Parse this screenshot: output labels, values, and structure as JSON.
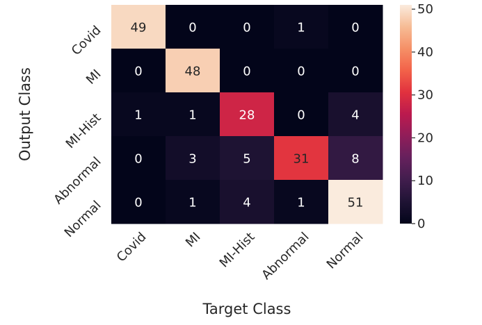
{
  "chart_data": {
    "type": "heatmap",
    "xlabel": "Target Class",
    "ylabel": "Output Class",
    "x_categories": [
      "Covid",
      "MI",
      "MI-Hist",
      "Abnormal",
      "Normal"
    ],
    "y_categories": [
      "Covid",
      "MI",
      "MI-Hist",
      "Abnormal",
      "Normal"
    ],
    "values": [
      [
        49,
        0,
        0,
        1,
        0
      ],
      [
        0,
        48,
        0,
        0,
        0
      ],
      [
        1,
        1,
        28,
        0,
        4
      ],
      [
        0,
        3,
        5,
        31,
        8
      ],
      [
        0,
        1,
        4,
        1,
        51
      ]
    ],
    "colorbar": {
      "min": 0,
      "max": 51,
      "ticks": [
        0,
        10,
        20,
        30,
        40,
        50
      ],
      "colormap": "rocket"
    },
    "annotations": "cell values shown",
    "grid": false
  }
}
